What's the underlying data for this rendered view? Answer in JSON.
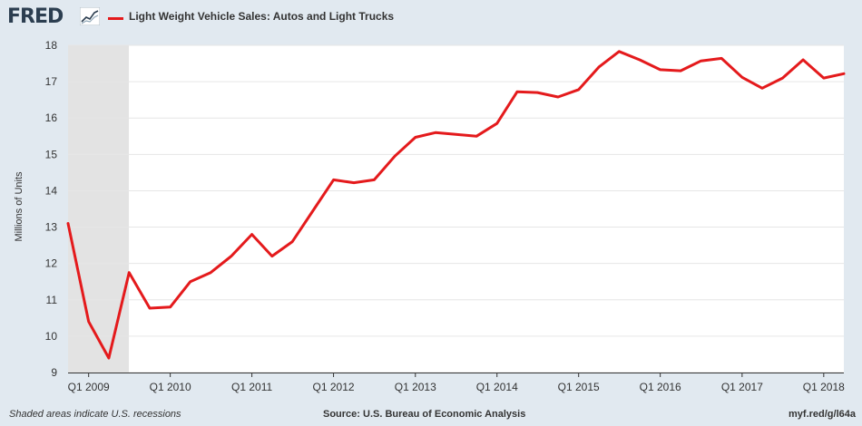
{
  "header": {
    "logo_text": "FRED",
    "legend_label": "Light Weight Vehicle Sales: Autos and Light Trucks"
  },
  "footer": {
    "recession_note": "Shaded areas indicate U.S. recessions",
    "source": "Source: U.S. Bureau of Economic Analysis",
    "short_url": "myf.red/g/l64a"
  },
  "colors": {
    "series": "#e41a1c",
    "plot_bg": "#ffffff",
    "page_bg": "#e1e9f0",
    "recession": "#e3e3e3",
    "grid": "#e6e6e6"
  },
  "chart_data": {
    "type": "line",
    "title": "",
    "xlabel": "",
    "ylabel": "Millions of Units",
    "ylim": [
      9,
      18
    ],
    "yticks": [
      9,
      10,
      11,
      12,
      13,
      14,
      15,
      16,
      17,
      18
    ],
    "grid": true,
    "xticks": [
      "Q1 2009",
      "Q1 2010",
      "Q1 2011",
      "Q1 2012",
      "Q1 2013",
      "Q1 2014",
      "Q1 2015",
      "Q1 2016",
      "Q1 2017",
      "Q1 2018"
    ],
    "recessions": [
      {
        "start": "2008-10-01",
        "end": "2009-06-30"
      }
    ],
    "series": [
      {
        "name": "Light Weight Vehicle Sales: Autos and Light Trucks",
        "x": [
          "2008-10-01",
          "2009-01-01",
          "2009-04-01",
          "2009-07-01",
          "2009-10-01",
          "2010-01-01",
          "2010-04-01",
          "2010-07-01",
          "2010-10-01",
          "2011-01-01",
          "2011-04-01",
          "2011-07-01",
          "2011-10-01",
          "2012-01-01",
          "2012-04-01",
          "2012-07-01",
          "2012-10-01",
          "2013-01-01",
          "2013-04-01",
          "2013-07-01",
          "2013-10-01",
          "2014-01-01",
          "2014-04-01",
          "2014-07-01",
          "2014-10-01",
          "2015-01-01",
          "2015-04-01",
          "2015-07-01",
          "2015-10-01",
          "2016-01-01",
          "2016-04-01",
          "2016-07-01",
          "2016-10-01",
          "2017-01-01",
          "2017-04-01",
          "2017-07-01",
          "2017-10-01",
          "2018-01-01",
          "2018-04-01"
        ],
        "values": [
          13.1,
          10.4,
          9.4,
          11.75,
          10.77,
          10.8,
          11.5,
          11.75,
          12.2,
          12.8,
          12.2,
          12.6,
          13.45,
          14.3,
          14.22,
          14.3,
          14.95,
          15.47,
          15.6,
          15.55,
          15.5,
          15.85,
          16.72,
          16.7,
          16.58,
          16.78,
          17.4,
          17.83,
          17.6,
          17.33,
          17.3,
          17.57,
          17.64,
          17.12,
          16.82,
          17.1,
          17.6,
          17.1,
          17.22
        ]
      }
    ]
  }
}
